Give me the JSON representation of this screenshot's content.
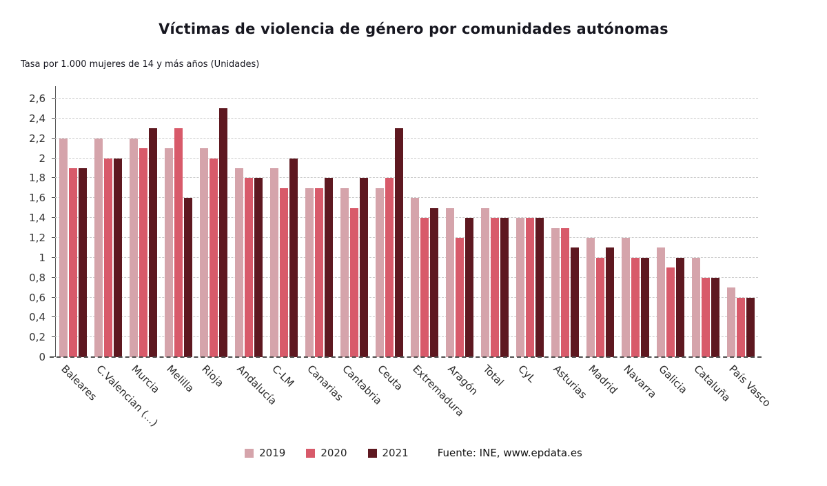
{
  "title": "Víctimas de violencia de género por comunidades autónomas",
  "subtitle": "Tasa por 1.000 mujeres de 14 y más años (Unidades)",
  "source": "Fuente: INE, www.epdata.es",
  "chart_data": {
    "type": "bar",
    "title": "Víctimas de violencia de género por comunidades autónomas",
    "subtitle": "Tasa por 1.000 mujeres de 14 y más años (Unidades)",
    "categories": [
      "Baleares",
      "C.Valencian (...)",
      "Murcia",
      "Melilla",
      "Rioja",
      "Andalucía",
      "C-LM",
      "Canarias",
      "Cantabria",
      "Ceuta",
      "Extremadura",
      "Aragón",
      "Total",
      "CyL",
      "Asturias",
      "Madrid",
      "Navarra",
      "Galicia",
      "Cataluña",
      "País Vasco"
    ],
    "series": [
      {
        "name": "2019",
        "color": "#d5a4ab",
        "values": [
          2.2,
          2.2,
          2.2,
          2.1,
          2.1,
          1.9,
          1.9,
          1.7,
          1.7,
          1.7,
          1.6,
          1.5,
          1.5,
          1.4,
          1.3,
          1.2,
          1.2,
          1.1,
          1.0,
          0.7
        ]
      },
      {
        "name": "2020",
        "color": "#d85a6a",
        "values": [
          1.9,
          2.0,
          2.1,
          2.3,
          2.0,
          1.8,
          1.7,
          1.7,
          1.5,
          1.8,
          1.4,
          1.2,
          1.4,
          1.4,
          1.3,
          1.0,
          1.0,
          0.9,
          0.8,
          0.6
        ]
      },
      {
        "name": "2021",
        "color": "#5e1820",
        "values": [
          1.9,
          2.0,
          2.3,
          1.6,
          2.5,
          1.8,
          2.0,
          1.8,
          1.8,
          2.3,
          1.5,
          1.4,
          1.4,
          1.4,
          1.1,
          1.1,
          1.0,
          1.0,
          0.8,
          0.6
        ]
      }
    ],
    "ylim": [
      0,
      2.6
    ],
    "ytick_values": [
      0,
      0.2,
      0.4,
      0.6,
      0.8,
      1,
      1.2,
      1.4,
      1.6,
      1.8,
      2,
      2.2,
      2.4,
      2.6
    ],
    "ytick_labels": [
      "0",
      "0,2",
      "0,4",
      "0,6",
      "0,8",
      "1",
      "1,2",
      "1,4",
      "1,6",
      "1,8",
      "2",
      "2,2",
      "2,4",
      "2,6"
    ],
    "grid": true,
    "legend_position": "bottom"
  }
}
